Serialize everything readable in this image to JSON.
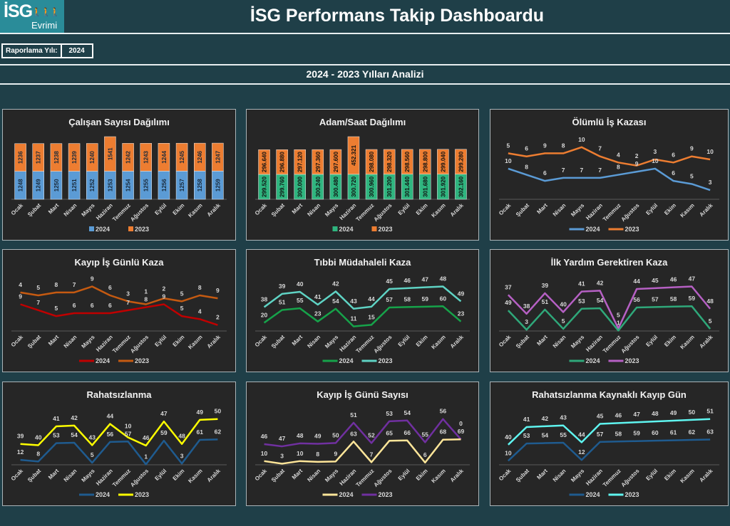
{
  "header": {
    "logo_text": "İSG",
    "logo_sub": "Evrimi",
    "title": "İSG Performans Takip Dashboardu"
  },
  "report_year": {
    "label": "Raporlama Yılı:",
    "value": "2024"
  },
  "subtitle": "2024 - 2023 Yılları Analizi",
  "months": [
    "Ocak",
    "Şubat",
    "Mart",
    "Nisan",
    "Mayıs",
    "Haziran",
    "Temmuz",
    "Ağustos",
    "Eylül",
    "Ekim",
    "Kasım",
    "Aralık"
  ],
  "chart_data": [
    {
      "type": "bar",
      "stacked": true,
      "title": "Çalışan Sayısı Dağılımı",
      "label_color": "#1a2a3a",
      "series": [
        {
          "name": "2024",
          "color": "#5b9bd5",
          "values": [
            1248,
            1249,
            1250,
            1251,
            1252,
            1253,
            1254,
            1255,
            1256,
            1257,
            1258,
            1259
          ],
          "labels": [
            "1248",
            "1249",
            "1250",
            "1251",
            "1252",
            "1253",
            "1254",
            "1255",
            "1256",
            "1257",
            "1258",
            "1259"
          ]
        },
        {
          "name": "2023",
          "color": "#ed7d31",
          "values": [
            1236,
            1237,
            1238,
            1239,
            1240,
            1541,
            1242,
            1243,
            1244,
            1245,
            1246,
            1247
          ],
          "labels": [
            "1236",
            "1237",
            "1238",
            "1239",
            "1240",
            "1541",
            "1242",
            "1243",
            "1244",
            "1245",
            "1246",
            "1247"
          ]
        }
      ]
    },
    {
      "type": "bar",
      "stacked": true,
      "title": "Adam/Saat Dağılımı",
      "label_color": "#111111",
      "series": [
        {
          "name": "2024",
          "color": "#2fb57f",
          "values": [
            299520,
            299760,
            300000,
            300240,
            300480,
            300720,
            300960,
            301200,
            301440,
            301680,
            301920,
            302160
          ],
          "labels": [
            "299.520",
            "299.760",
            "300.000",
            "300.240",
            "300.480",
            "300.720",
            "300.960",
            "301.200",
            "301.440",
            "301.680",
            "301.920",
            "302.160"
          ]
        },
        {
          "name": "2023",
          "color": "#ed7d31",
          "values": [
            296640,
            296880,
            297120,
            297360,
            297600,
            452321,
            298080,
            298320,
            298560,
            298800,
            299040,
            299280
          ],
          "labels": [
            "296.640",
            "296.880",
            "297.120",
            "297.360",
            "297.600",
            "452.321",
            "298.080",
            "298.320",
            "298.560",
            "298.800",
            "299.040",
            "299.280"
          ]
        }
      ]
    },
    {
      "type": "line",
      "stacked": true,
      "title": "Ölümlü İş Kazası",
      "series": [
        {
          "name": "2024",
          "color": "#5b9bd5",
          "values": [
            10,
            8,
            6,
            7,
            7,
            7,
            8,
            9,
            10,
            6,
            5,
            3
          ],
          "labels": [
            "10",
            "8",
            "6",
            "7",
            "7",
            "7",
            "8",
            "9",
            "10",
            "6",
            "5",
            "3"
          ]
        },
        {
          "name": "2023",
          "color": "#ed7d31",
          "values": [
            5,
            6,
            9,
            8,
            10,
            7,
            4,
            2,
            3,
            6,
            9,
            10
          ],
          "labels": [
            "5",
            "6",
            "9",
            "8",
            "10",
            "7",
            "4",
            "2",
            "3",
            "6",
            "9",
            "10"
          ]
        }
      ]
    },
    {
      "type": "line",
      "stacked": true,
      "title": "Kayıp İş Günlü Kaza",
      "series": [
        {
          "name": "2024",
          "color": "#c00000",
          "values": [
            9,
            7,
            5,
            6,
            6,
            6,
            7,
            8,
            9,
            5,
            4,
            2
          ],
          "labels": [
            "9",
            "7",
            "5",
            "6",
            "6",
            "6",
            "7",
            "8",
            "9",
            "5",
            "4",
            "2"
          ]
        },
        {
          "name": "2023",
          "color": "#c55a11",
          "values": [
            4,
            5,
            8,
            7,
            9,
            6,
            3,
            1,
            2,
            5,
            8,
            9
          ],
          "labels": [
            "4",
            "5",
            "8",
            "7",
            "9",
            "6",
            "3",
            "1",
            "2",
            "5",
            "8",
            "9"
          ]
        }
      ]
    },
    {
      "type": "line",
      "stacked": true,
      "title": "Tıbbi Müdahaleli Kaza",
      "series": [
        {
          "name": "2024",
          "color": "#16a34a",
          "values": [
            20,
            51,
            55,
            23,
            54,
            11,
            15,
            57,
            58,
            59,
            60,
            23
          ],
          "labels": [
            "20",
            "51",
            "55",
            "23",
            "54",
            "11",
            "15",
            "57",
            "58",
            "59",
            "60",
            "23"
          ]
        },
        {
          "name": "2023",
          "color": "#5fd3c4",
          "values": [
            38,
            39,
            40,
            41,
            42,
            43,
            44,
            45,
            46,
            47,
            48,
            49
          ],
          "labels": [
            "38",
            "39",
            "40",
            "41",
            "42",
            "43",
            "44",
            "45",
            "46",
            "47",
            "48",
            "49"
          ]
        }
      ]
    },
    {
      "type": "line",
      "stacked": true,
      "title": "İlk Yardım Gerektiren Kaza",
      "series": [
        {
          "name": "2024",
          "color": "#2fa87a",
          "values": [
            49,
            3,
            51,
            5,
            53,
            54,
            1,
            56,
            57,
            58,
            59,
            5
          ],
          "labels": [
            "49",
            "3",
            "51",
            "5",
            "53",
            "54",
            "1",
            "56",
            "57",
            "58",
            "59",
            "5"
          ]
        },
        {
          "name": "2023",
          "color": "#b660c4",
          "values": [
            37,
            38,
            39,
            40,
            41,
            42,
            5,
            44,
            45,
            46,
            47,
            48
          ],
          "labels": [
            "37",
            "38",
            "39",
            "40",
            "41",
            "42",
            "5",
            "44",
            "45",
            "46",
            "47",
            "48"
          ]
        }
      ]
    },
    {
      "type": "line",
      "stacked": true,
      "title": "Rahatsızlanma",
      "series": [
        {
          "name": "2024",
          "color": "#1f5b8f",
          "values": [
            12,
            8,
            53,
            54,
            5,
            56,
            57,
            1,
            59,
            3,
            61,
            62
          ],
          "labels": [
            "12",
            "8",
            "53",
            "54",
            "5",
            "56",
            "57",
            "1",
            "59",
            "3",
            "61",
            "62"
          ]
        },
        {
          "name": "2023",
          "color": "#ffff00",
          "values": [
            39,
            40,
            41,
            42,
            43,
            44,
            10,
            46,
            47,
            48,
            49,
            50
          ],
          "labels": [
            "39",
            "40",
            "41",
            "42",
            "43",
            "44",
            "10",
            "46",
            "47",
            "48",
            "49",
            "50"
          ]
        }
      ]
    },
    {
      "type": "line",
      "stacked": true,
      "title": "Kayıp İş Günü Sayısı",
      "series": [
        {
          "name": "2024",
          "color": "#ffe699",
          "values": [
            10,
            3,
            10,
            8,
            9,
            63,
            7,
            65,
            66,
            6,
            68,
            69
          ],
          "labels": [
            "10",
            "3",
            "10",
            "8",
            "9",
            "63",
            "7",
            "65",
            "66",
            "6",
            "68",
            "69"
          ]
        },
        {
          "name": "2023",
          "color": "#7030a0",
          "values": [
            46,
            47,
            48,
            49,
            50,
            51,
            52,
            53,
            54,
            55,
            56,
            0
          ],
          "labels": [
            "46",
            "47",
            "48",
            "49",
            "50",
            "51",
            "52",
            "53",
            "54",
            "55",
            "56",
            "0"
          ]
        }
      ]
    },
    {
      "type": "line",
      "stacked": true,
      "title": "Rahatsızlanma Kaynaklı Kayıp Gün",
      "series": [
        {
          "name": "2024",
          "color": "#1f5b8f",
          "values": [
            10,
            53,
            54,
            55,
            12,
            57,
            58,
            59,
            60,
            61,
            62,
            63
          ],
          "labels": [
            "10",
            "53",
            "54",
            "55",
            "12",
            "57",
            "58",
            "59",
            "60",
            "61",
            "62",
            "63"
          ]
        },
        {
          "name": "2023",
          "color": "#5ff5f0",
          "values": [
            40,
            41,
            42,
            43,
            44,
            45,
            46,
            47,
            48,
            49,
            50,
            51
          ],
          "labels": [
            "40",
            "41",
            "42",
            "43",
            "44",
            "45",
            "46",
            "47",
            "48",
            "49",
            "50",
            "51"
          ]
        }
      ]
    }
  ]
}
